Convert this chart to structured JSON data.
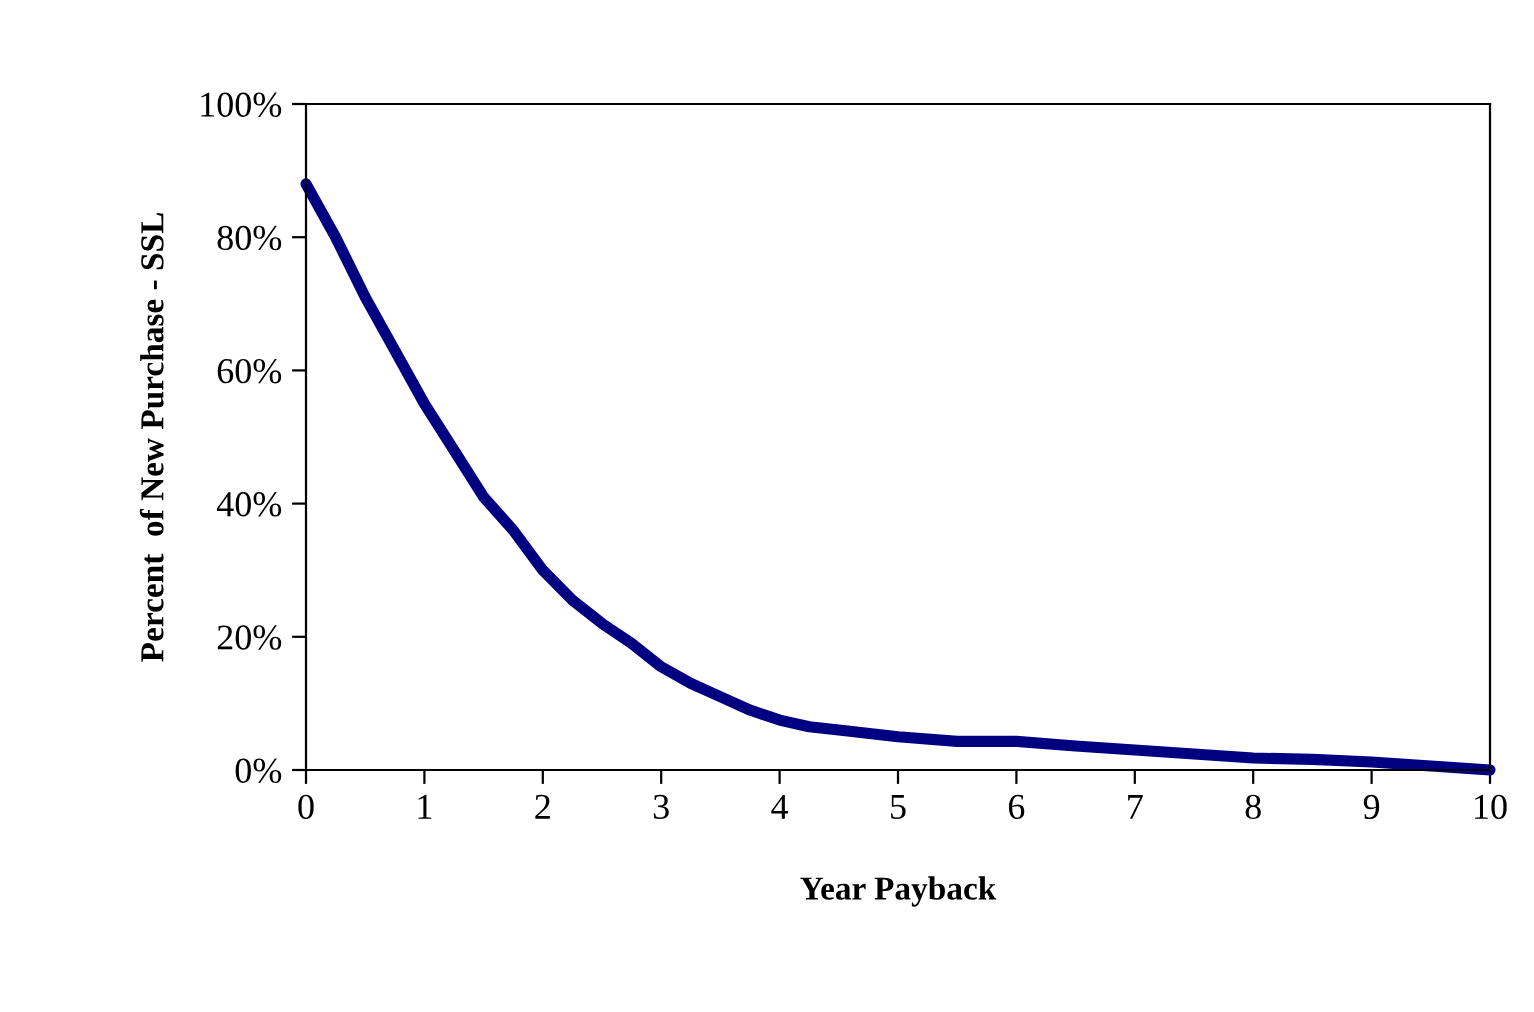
{
  "chart_data": {
    "type": "line",
    "xlabel": "Year Payback",
    "ylabel": "Percent  of New Purchase - SSL",
    "x": [
      0,
      0.25,
      0.5,
      0.75,
      1,
      1.25,
      1.5,
      1.75,
      2,
      2.25,
      2.5,
      2.75,
      3,
      3.25,
      3.5,
      3.75,
      4,
      4.25,
      4.5,
      5,
      5.5,
      6,
      6.5,
      7,
      7.5,
      8,
      8.5,
      9,
      9.5,
      10
    ],
    "series": [
      {
        "color": "#000080",
        "values": [
          88,
          80,
          71,
          63,
          55,
          48,
          41,
          36,
          30,
          25.5,
          22,
          19,
          15.5,
          13,
          11,
          9,
          7.5,
          6.5,
          6,
          5,
          4.3,
          4.3,
          3.6,
          3,
          2.4,
          1.8,
          1.6,
          1.2,
          0.6,
          0
        ]
      }
    ],
    "xlim": [
      0,
      10
    ],
    "xticks": [
      0,
      1,
      2,
      3,
      4,
      5,
      6,
      7,
      8,
      9,
      10
    ],
    "ylim": [
      0,
      100
    ],
    "yticks": [
      {
        "value": 0,
        "label": "0%"
      },
      {
        "value": 20,
        "label": "20%"
      },
      {
        "value": 40,
        "label": "40%"
      },
      {
        "value": 60,
        "label": "60%"
      },
      {
        "value": 80,
        "label": "80%"
      },
      {
        "value": 100,
        "label": "100%"
      }
    ],
    "grid": false,
    "legend": false,
    "marker": "none",
    "line_style": "solid"
  }
}
